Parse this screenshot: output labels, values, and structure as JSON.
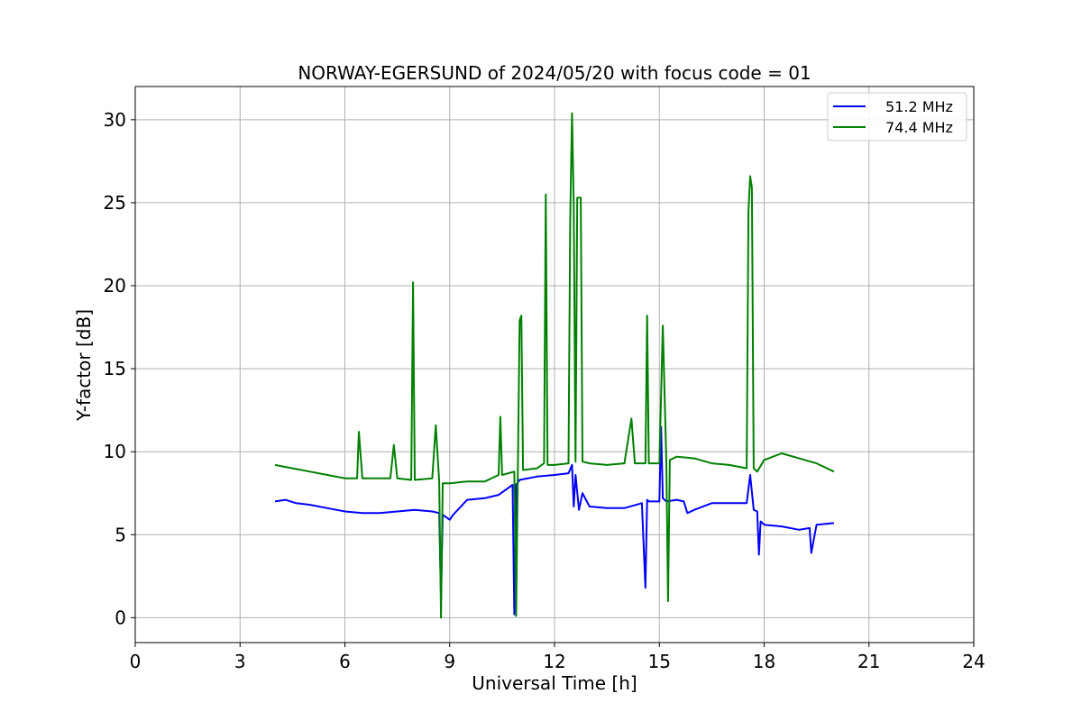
{
  "chart_data": {
    "type": "line",
    "title": "NORWAY-EGERSUND of 2024/05/20 with focus code = 01",
    "xlabel": "Universal Time [h]",
    "ylabel": "Y-factor [dB]",
    "xlim": [
      0,
      24
    ],
    "ylim": [
      -1.5,
      32
    ],
    "xticks": [
      0,
      3,
      6,
      9,
      12,
      15,
      18,
      21,
      24
    ],
    "yticks": [
      0,
      5,
      10,
      15,
      20,
      25,
      30
    ],
    "grid": true,
    "legend_position": "top-right",
    "series": [
      {
        "name": "51.2 MHz",
        "color": "#0000ff",
        "x": [
          4.0,
          4.3,
          4.6,
          5.0,
          5.5,
          6.0,
          6.5,
          7.0,
          7.5,
          8.0,
          8.5,
          8.7,
          8.75,
          8.8,
          9.0,
          9.1,
          9.5,
          10.0,
          10.4,
          10.8,
          10.85,
          10.9,
          11.0,
          11.5,
          12.0,
          12.4,
          12.5,
          12.55,
          12.6,
          12.7,
          12.8,
          13.0,
          13.5,
          14.0,
          14.5,
          14.6,
          14.65,
          14.7,
          15.0,
          15.05,
          15.1,
          15.2,
          15.5,
          15.7,
          15.8,
          16.0,
          16.5,
          17.0,
          17.5,
          17.6,
          17.7,
          17.8,
          17.85,
          17.9,
          18.0,
          18.5,
          19.0,
          19.3,
          19.35,
          19.5,
          20.0
        ],
        "y": [
          7.0,
          7.1,
          6.9,
          6.8,
          6.6,
          6.4,
          6.3,
          6.3,
          6.4,
          6.5,
          6.4,
          6.3,
          1.2,
          6.2,
          5.9,
          6.2,
          7.1,
          7.2,
          7.4,
          8.0,
          0.2,
          8.0,
          8.3,
          8.5,
          8.6,
          8.7,
          9.2,
          6.7,
          8.6,
          6.5,
          7.5,
          6.7,
          6.6,
          6.6,
          6.9,
          1.8,
          7.1,
          7.0,
          7.0,
          11.5,
          7.2,
          7.0,
          7.1,
          7.0,
          6.3,
          6.5,
          6.9,
          6.9,
          6.9,
          8.6,
          6.5,
          6.4,
          3.8,
          5.8,
          5.6,
          5.5,
          5.3,
          5.4,
          3.9,
          5.6,
          5.7
        ]
      },
      {
        "name": "74.4 MHz",
        "color": "#008000",
        "x": [
          4.0,
          4.5,
          5.0,
          5.5,
          6.0,
          6.35,
          6.4,
          6.5,
          7.0,
          7.3,
          7.4,
          7.5,
          7.9,
          7.95,
          8.0,
          8.5,
          8.6,
          8.7,
          8.75,
          8.8,
          9.0,
          9.5,
          10.0,
          10.4,
          10.45,
          10.5,
          10.85,
          10.9,
          11.0,
          11.05,
          11.1,
          11.5,
          11.7,
          11.75,
          11.8,
          12.0,
          12.4,
          12.45,
          12.5,
          12.55,
          12.6,
          12.65,
          12.7,
          12.75,
          12.8,
          13.0,
          13.5,
          14.0,
          14.2,
          14.3,
          14.6,
          14.65,
          14.7,
          15.0,
          15.1,
          15.2,
          15.25,
          15.3,
          15.5,
          16.0,
          16.5,
          17.0,
          17.5,
          17.55,
          17.6,
          17.65,
          17.7,
          17.8,
          18.0,
          18.5,
          19.0,
          19.5,
          20.0
        ],
        "y": [
          9.2,
          9.0,
          8.8,
          8.6,
          8.4,
          8.4,
          11.2,
          8.4,
          8.4,
          8.4,
          10.4,
          8.4,
          8.3,
          20.2,
          8.3,
          8.4,
          11.6,
          8.2,
          0.0,
          8.1,
          8.1,
          8.2,
          8.2,
          8.6,
          12.1,
          8.6,
          8.8,
          0.1,
          17.9,
          18.2,
          8.9,
          9.0,
          9.3,
          25.5,
          9.2,
          9.2,
          9.3,
          24.0,
          30.4,
          25.0,
          9.4,
          25.3,
          25.3,
          25.3,
          9.4,
          9.3,
          9.2,
          9.3,
          12.0,
          9.3,
          9.3,
          18.2,
          9.3,
          9.3,
          17.6,
          9.4,
          1.0,
          9.5,
          9.7,
          9.6,
          9.3,
          9.2,
          9.0,
          24.5,
          26.6,
          25.9,
          9.0,
          8.8,
          9.5,
          9.9,
          9.6,
          9.3,
          8.8
        ]
      }
    ]
  }
}
